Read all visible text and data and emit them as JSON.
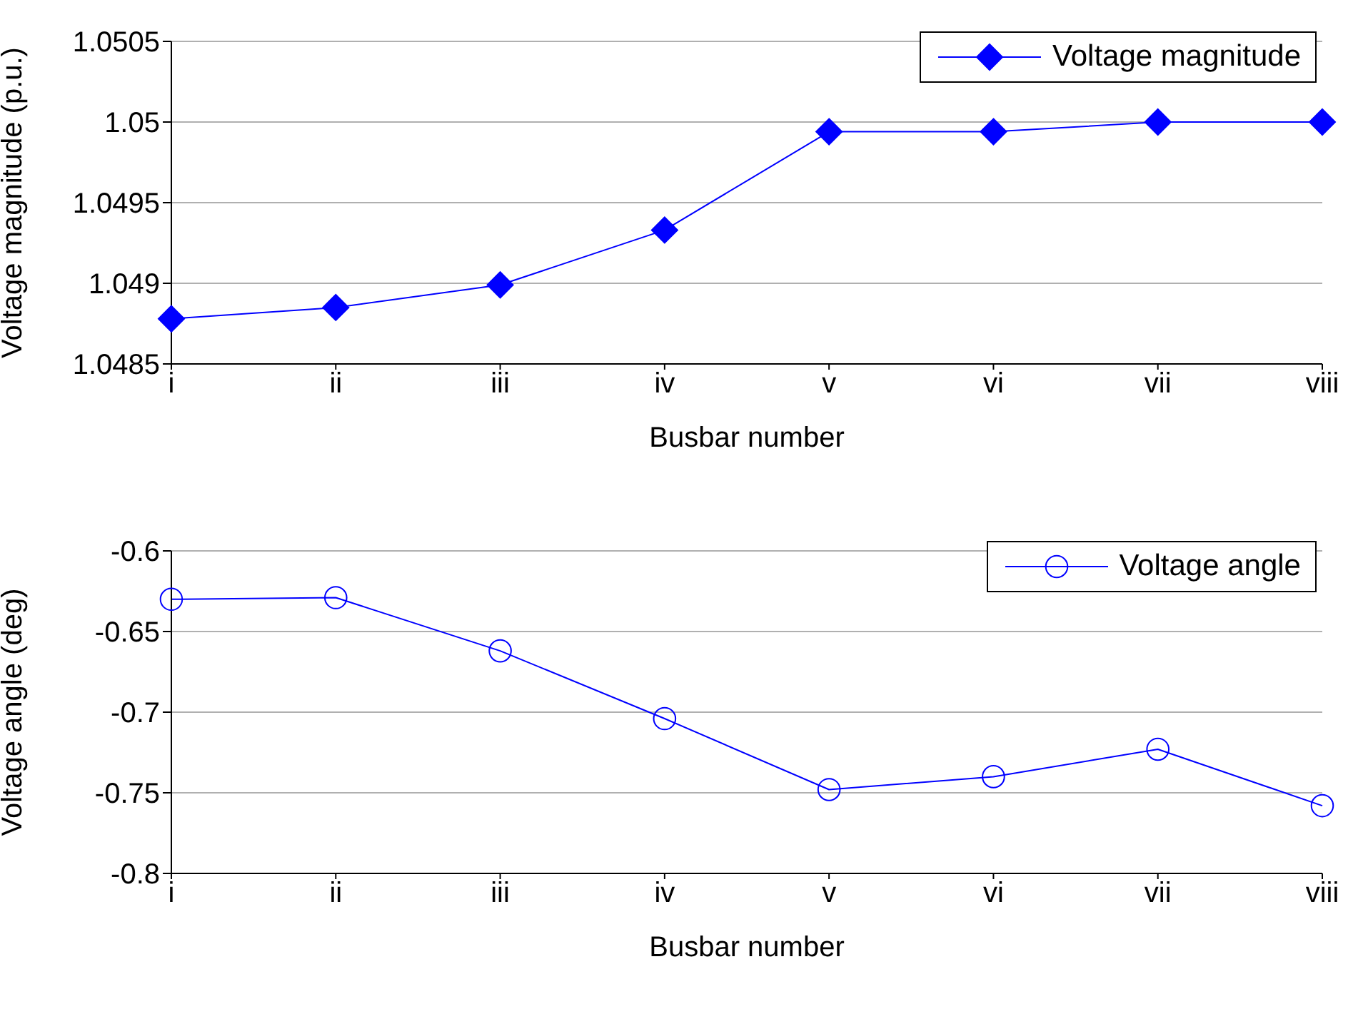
{
  "chart_data": [
    {
      "type": "line",
      "xlabel": "Busbar number",
      "ylabel": "Voltage magnitude (p.u.)",
      "categories": [
        "i",
        "ii",
        "iii",
        "iv",
        "v",
        "vi",
        "vii",
        "viii"
      ],
      "series": [
        {
          "name": "Voltage magnitude",
          "color": "#0000ff",
          "marker": "diamond",
          "values": [
            1.04878,
            1.04885,
            1.04899,
            1.04933,
            1.04994,
            1.04994,
            1.05,
            1.05
          ]
        }
      ],
      "ylim": [
        1.0485,
        1.0505
      ],
      "yticks": [
        1.0485,
        1.049,
        1.0495,
        1.05,
        1.0505
      ],
      "grid": "y",
      "legend": "top right"
    },
    {
      "type": "line",
      "xlabel": "Busbar number",
      "ylabel": "Voltage angle (deg)",
      "categories": [
        "i",
        "ii",
        "iii",
        "iv",
        "v",
        "vi",
        "vii",
        "viii"
      ],
      "series": [
        {
          "name": "Voltage angle",
          "color": "#0000ff",
          "marker": "circle",
          "values": [
            -0.63,
            -0.629,
            -0.662,
            -0.704,
            -0.748,
            -0.74,
            -0.723,
            -0.758
          ]
        }
      ],
      "ylim": [
        -0.8,
        -0.6
      ],
      "yticks": [
        -0.8,
        -0.75,
        -0.7,
        -0.65,
        -0.6
      ],
      "grid": "y",
      "legend": "top right"
    }
  ]
}
